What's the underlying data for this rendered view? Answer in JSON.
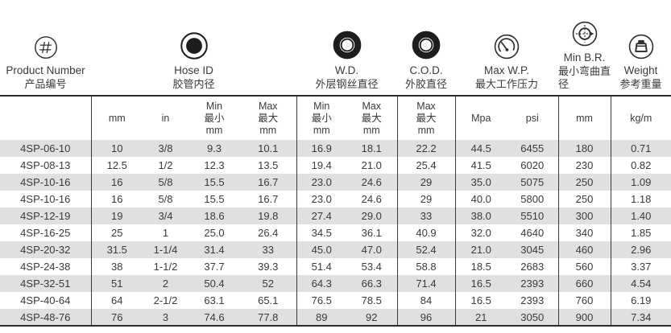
{
  "colors": {
    "stripe": "#e0e0e0",
    "line": "#2e2e2e",
    "text": "#3a3a3a"
  },
  "columns": [
    {
      "en": "Product Number",
      "zh": "产品编号",
      "icon": "hash-icon"
    },
    {
      "en": "Hose ID",
      "zh": "胶管内径",
      "icon": "hose-id-icon"
    },
    {
      "en": "W.D.",
      "zh": "外层钢丝直径",
      "icon": "wire-diameter-icon"
    },
    {
      "en": "C.O.D.",
      "zh": "外胶直径",
      "icon": "cover-diameter-icon"
    },
    {
      "en": "Max W.P.",
      "zh": "最大工作压力",
      "icon": "gauge-icon"
    },
    {
      "en": "Min B.R.",
      "zh": "最小弯曲直径",
      "icon": "bend-radius-icon"
    },
    {
      "en": "Weight",
      "zh": "参考重量",
      "icon": "weight-icon"
    }
  ],
  "subheaders": {
    "product": "",
    "hose_mm": "mm",
    "hose_in": "in",
    "hose_min": "Min\n最小\nmm",
    "hose_max": "Max\n最大\nmm",
    "wd_min": "Min\n最小\nmm",
    "wd_max": "Max\n最大\nmm",
    "cod_max": "Max\n最大\nmm",
    "wp_mpa": "Mpa",
    "wp_psi": "psi",
    "br_mm": "mm",
    "weight_kgm": "kg/m"
  },
  "rows": [
    [
      "4SP-06-10",
      "10",
      "3/8",
      "9.3",
      "10.1",
      "16.9",
      "18.1",
      "22.2",
      "44.5",
      "6455",
      "180",
      "0.71"
    ],
    [
      "4SP-08-13",
      "12.5",
      "1/2",
      "12.3",
      "13.5",
      "19.4",
      "21.0",
      "25.4",
      "41.5",
      "6020",
      "230",
      "0.82"
    ],
    [
      "4SP-10-16",
      "16",
      "5/8",
      "15.5",
      "16.7",
      "23.0",
      "24.6",
      "29",
      "35.0",
      "5075",
      "250",
      "1.09"
    ],
    [
      "4SP-10-16",
      "16",
      "5/8",
      "15.5",
      "16.7",
      "23.0",
      "24.6",
      "29",
      "40.0",
      "5800",
      "250",
      "1.18"
    ],
    [
      "4SP-12-19",
      "19",
      "3/4",
      "18.6",
      "19.8",
      "27.4",
      "29.0",
      "33",
      "38.0",
      "5510",
      "300",
      "1.40"
    ],
    [
      "4SP-16-25",
      "25",
      "1",
      "25.0",
      "26.4",
      "34.5",
      "36.1",
      "40.9",
      "32.0",
      "4640",
      "340",
      "1.85"
    ],
    [
      "4SP-20-32",
      "31.5",
      "1-1/4",
      "31.4",
      "33",
      "45.0",
      "47.0",
      "52.4",
      "21.0",
      "3045",
      "460",
      "2.96"
    ],
    [
      "4SP-24-38",
      "38",
      "1-1/2",
      "37.7",
      "39.3",
      "51.4",
      "53.4",
      "58.8",
      "18.5",
      "2683",
      "560",
      "3.37"
    ],
    [
      "4SP-32-51",
      "51",
      "2",
      "50.4",
      "52",
      "64.3",
      "66.3",
      "71.4",
      "16.5",
      "2393",
      "660",
      "4.54"
    ],
    [
      "4SP-40-64",
      "64",
      "2-1/2",
      "63.1",
      "65.1",
      "76.5",
      "78.5",
      "84",
      "16.5",
      "2393",
      "760",
      "6.19"
    ],
    [
      "4SP-48-76",
      "76",
      "3",
      "74.6",
      "77.8",
      "89",
      "92",
      "96",
      "21",
      "3050",
      "900",
      "7.34"
    ]
  ]
}
